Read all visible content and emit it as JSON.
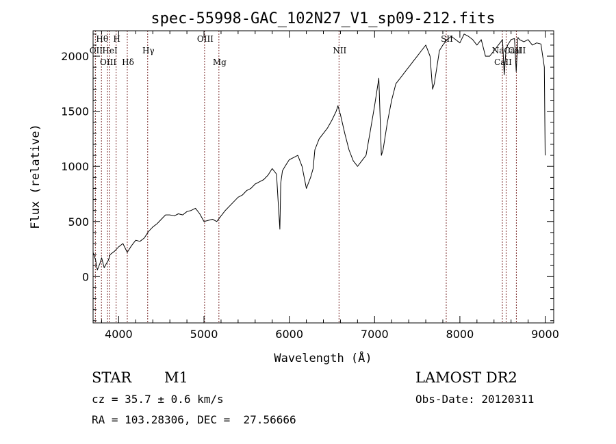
{
  "chart_data": {
    "type": "line",
    "title": "spec-55998-GAC_102N27_V1_sp09-212.fits",
    "xlabel": "Wavelength (Å)",
    "ylabel": "Flux (relative)",
    "xlim": [
      3700,
      9100
    ],
    "ylim": [
      -420,
      2230
    ],
    "xticks": [
      4000,
      5000,
      6000,
      7000,
      8000,
      9000
    ],
    "yticks": [
      0,
      500,
      1000,
      1500,
      2000
    ],
    "grid": false,
    "series": [
      {
        "color": "#000000",
        "x": [
          3700,
          3730,
          3750,
          3780,
          3800,
          3830,
          3850,
          3880,
          3900,
          3950,
          4000,
          4050,
          4100,
          4150,
          4200,
          4250,
          4300,
          4350,
          4400,
          4450,
          4500,
          4550,
          4600,
          4650,
          4700,
          4750,
          4800,
          4850,
          4900,
          4950,
          5000,
          5050,
          5100,
          5150,
          5200,
          5250,
          5300,
          5350,
          5400,
          5450,
          5500,
          5550,
          5600,
          5650,
          5700,
          5750,
          5800,
          5850,
          5870,
          5890,
          5900,
          5920,
          5950,
          6000,
          6050,
          6100,
          6150,
          6200,
          6250,
          6280,
          6300,
          6350,
          6400,
          6450,
          6500,
          6550,
          6570,
          6600,
          6650,
          6700,
          6750,
          6800,
          6850,
          6900,
          6950,
          7000,
          7050,
          7080,
          7100,
          7150,
          7200,
          7250,
          7300,
          7350,
          7400,
          7450,
          7500,
          7550,
          7600,
          7650,
          7680,
          7700,
          7730,
          7760,
          7800,
          7850,
          7900,
          7950,
          8000,
          8050,
          8100,
          8150,
          8200,
          8250,
          8300,
          8350,
          8400,
          8450,
          8500,
          8520,
          8540,
          8560,
          8600,
          8640,
          8660,
          8680,
          8700,
          8750,
          8800,
          8850,
          8900,
          8950,
          8990,
          9000
        ],
        "y": [
          220,
          150,
          60,
          120,
          170,
          80,
          110,
          150,
          200,
          230,
          270,
          300,
          220,
          280,
          330,
          320,
          350,
          410,
          450,
          480,
          520,
          560,
          560,
          550,
          570,
          560,
          590,
          600,
          620,
          570,
          500,
          510,
          520,
          500,
          550,
          600,
          640,
          680,
          720,
          740,
          780,
          800,
          840,
          860,
          880,
          920,
          980,
          930,
          680,
          430,
          850,
          960,
          1000,
          1060,
          1080,
          1100,
          1000,
          800,
          900,
          980,
          1150,
          1250,
          1300,
          1350,
          1420,
          1500,
          1550,
          1470,
          1300,
          1150,
          1050,
          1000,
          1050,
          1100,
          1320,
          1550,
          1800,
          1100,
          1150,
          1400,
          1600,
          1750,
          1800,
          1850,
          1900,
          1950,
          2000,
          2050,
          2100,
          2000,
          1700,
          1750,
          1900,
          2050,
          2100,
          2150,
          2180,
          2150,
          2120,
          2200,
          2180,
          2150,
          2100,
          2150,
          2000,
          2000,
          2050,
          2100,
          2150,
          1830,
          2050,
          2100,
          2150,
          2160,
          1860,
          2170,
          2150,
          2130,
          2150,
          2100,
          2120,
          2110,
          1900,
          1100
        ]
      }
    ],
    "spectral_lines": [
      {
        "name": "Hθ",
        "x": 3798,
        "row": 1
      },
      {
        "name": "H",
        "x": 3970,
        "row": 1
      },
      {
        "name": "OII",
        "x": 3727,
        "row": 2
      },
      {
        "name": "HeI",
        "x": 3889,
        "row": 2
      },
      {
        "name": "Hγ",
        "x": 4340,
        "row": 2
      },
      {
        "name": "OIII",
        "x": 3869,
        "row": 3
      },
      {
        "name": "Hδ",
        "x": 4101,
        "row": 3
      },
      {
        "name": "OIII",
        "x": 5007,
        "row": 1
      },
      {
        "name": "Mg",
        "x": 5175,
        "row": 3
      },
      {
        "name": "NII",
        "x": 6583,
        "row": 2
      },
      {
        "name": "SII",
        "x": 7840,
        "row": 1
      },
      {
        "name": "NaCaII",
        "x": 8542,
        "row": 2
      },
      {
        "name": "CaII",
        "x": 8498,
        "row": 3
      },
      {
        "name": "CaII",
        "x": 8662,
        "row": 2
      }
    ]
  },
  "info": {
    "class": "STAR",
    "subclass": "M1",
    "survey": "LAMOST DR2",
    "cz": "cz = 35.7 ± 0.6 km/s",
    "obs_date": "Obs-Date: 20120311",
    "coords": "RA = 103.28306, DEC =  27.56666"
  }
}
